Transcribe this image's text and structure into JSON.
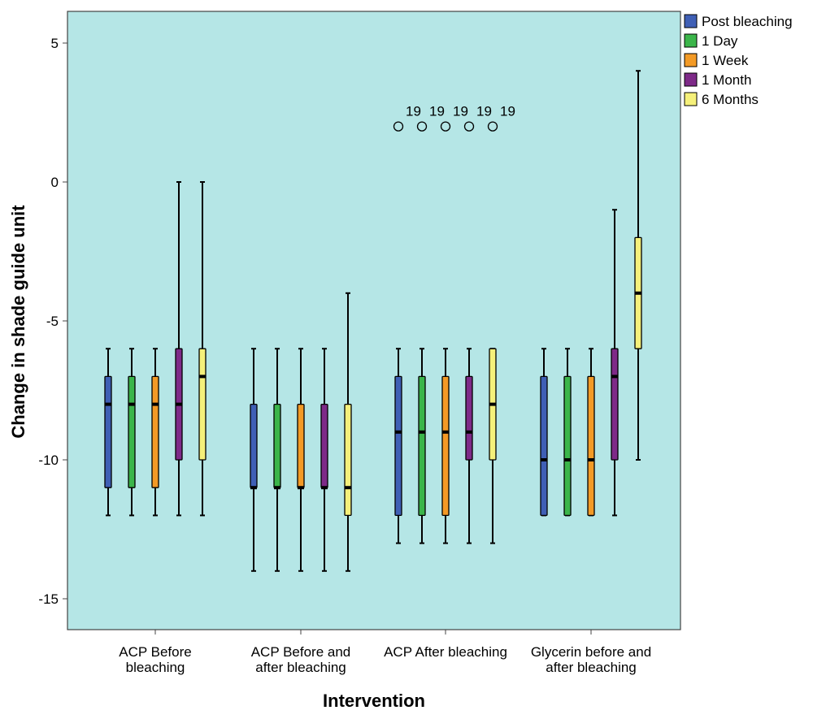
{
  "chart_data": {
    "type": "boxplot",
    "xlabel": "Intervention",
    "ylabel": "Change in shade guide unit",
    "ylim": [
      -16,
      6
    ],
    "yticks": [
      5,
      0,
      -5,
      -10,
      -15
    ],
    "ytick_labels": [
      "5",
      "0",
      "-5",
      "-10",
      "-15"
    ],
    "categories": [
      [
        "ACP Before",
        "bleaching"
      ],
      [
        "ACP Before and",
        "after bleaching"
      ],
      [
        "ACP After bleaching"
      ],
      [
        "Glycerin before and",
        "after bleaching"
      ]
    ],
    "legend_position": "top-right, outside plot",
    "background_color": "#b5e6e6",
    "series": [
      {
        "name": "Post bleaching",
        "color": "#3f5fb5",
        "boxes": [
          {
            "min": -12,
            "q1": -11,
            "median": -8,
            "q3": -7,
            "max": -6
          },
          {
            "min": -14,
            "q1": -11,
            "median": -11,
            "q3": -8,
            "max": -6
          },
          {
            "min": -13,
            "q1": -12,
            "median": -9,
            "q3": -7,
            "max": -6,
            "outliers": [
              {
                "value": 2,
                "label": "19"
              }
            ]
          },
          {
            "min": -12,
            "q1": -12,
            "median": -10,
            "q3": -7,
            "max": -6
          }
        ]
      },
      {
        "name": "1 Day",
        "color": "#3bb54a",
        "boxes": [
          {
            "min": -12,
            "q1": -11,
            "median": -8,
            "q3": -7,
            "max": -6
          },
          {
            "min": -14,
            "q1": -11,
            "median": -11,
            "q3": -8,
            "max": -6
          },
          {
            "min": -13,
            "q1": -12,
            "median": -9,
            "q3": -7,
            "max": -6,
            "outliers": [
              {
                "value": 2,
                "label": "19"
              }
            ]
          },
          {
            "min": -12,
            "q1": -12,
            "median": -10,
            "q3": -7,
            "max": -6
          }
        ]
      },
      {
        "name": "1 Week",
        "color": "#f39a26",
        "boxes": [
          {
            "min": -12,
            "q1": -11,
            "median": -8,
            "q3": -7,
            "max": -6
          },
          {
            "min": -14,
            "q1": -11,
            "median": -11,
            "q3": -8,
            "max": -6
          },
          {
            "min": -13,
            "q1": -12,
            "median": -9,
            "q3": -7,
            "max": -6,
            "outliers": [
              {
                "value": 2,
                "label": "19"
              }
            ]
          },
          {
            "min": -12,
            "q1": -12,
            "median": -10,
            "q3": -7,
            "max": -6
          }
        ]
      },
      {
        "name": "1 Month",
        "color": "#7e2a88",
        "boxes": [
          {
            "min": -12,
            "q1": -10,
            "median": -8,
            "q3": -6,
            "max": 0
          },
          {
            "min": -14,
            "q1": -11,
            "median": -11,
            "q3": -8,
            "max": -6
          },
          {
            "min": -13,
            "q1": -10,
            "median": -9,
            "q3": -7,
            "max": -6,
            "outliers": [
              {
                "value": 2,
                "label": "19"
              }
            ]
          },
          {
            "min": -12,
            "q1": -10,
            "median": -7,
            "q3": -6,
            "max": -1
          }
        ]
      },
      {
        "name": "6 Months",
        "color": "#f5f07a",
        "boxes": [
          {
            "min": -12,
            "q1": -10,
            "median": -7,
            "q3": -6,
            "max": 0
          },
          {
            "min": -14,
            "q1": -12,
            "median": -11,
            "q3": -8,
            "max": -4
          },
          {
            "min": -13,
            "q1": -10,
            "median": -8,
            "q3": -6,
            "max": -6,
            "outliers": [
              {
                "value": 2,
                "label": "19"
              }
            ]
          },
          {
            "min": -10,
            "q1": -6,
            "median": -4,
            "q3": -2,
            "max": 4
          }
        ]
      }
    ]
  }
}
